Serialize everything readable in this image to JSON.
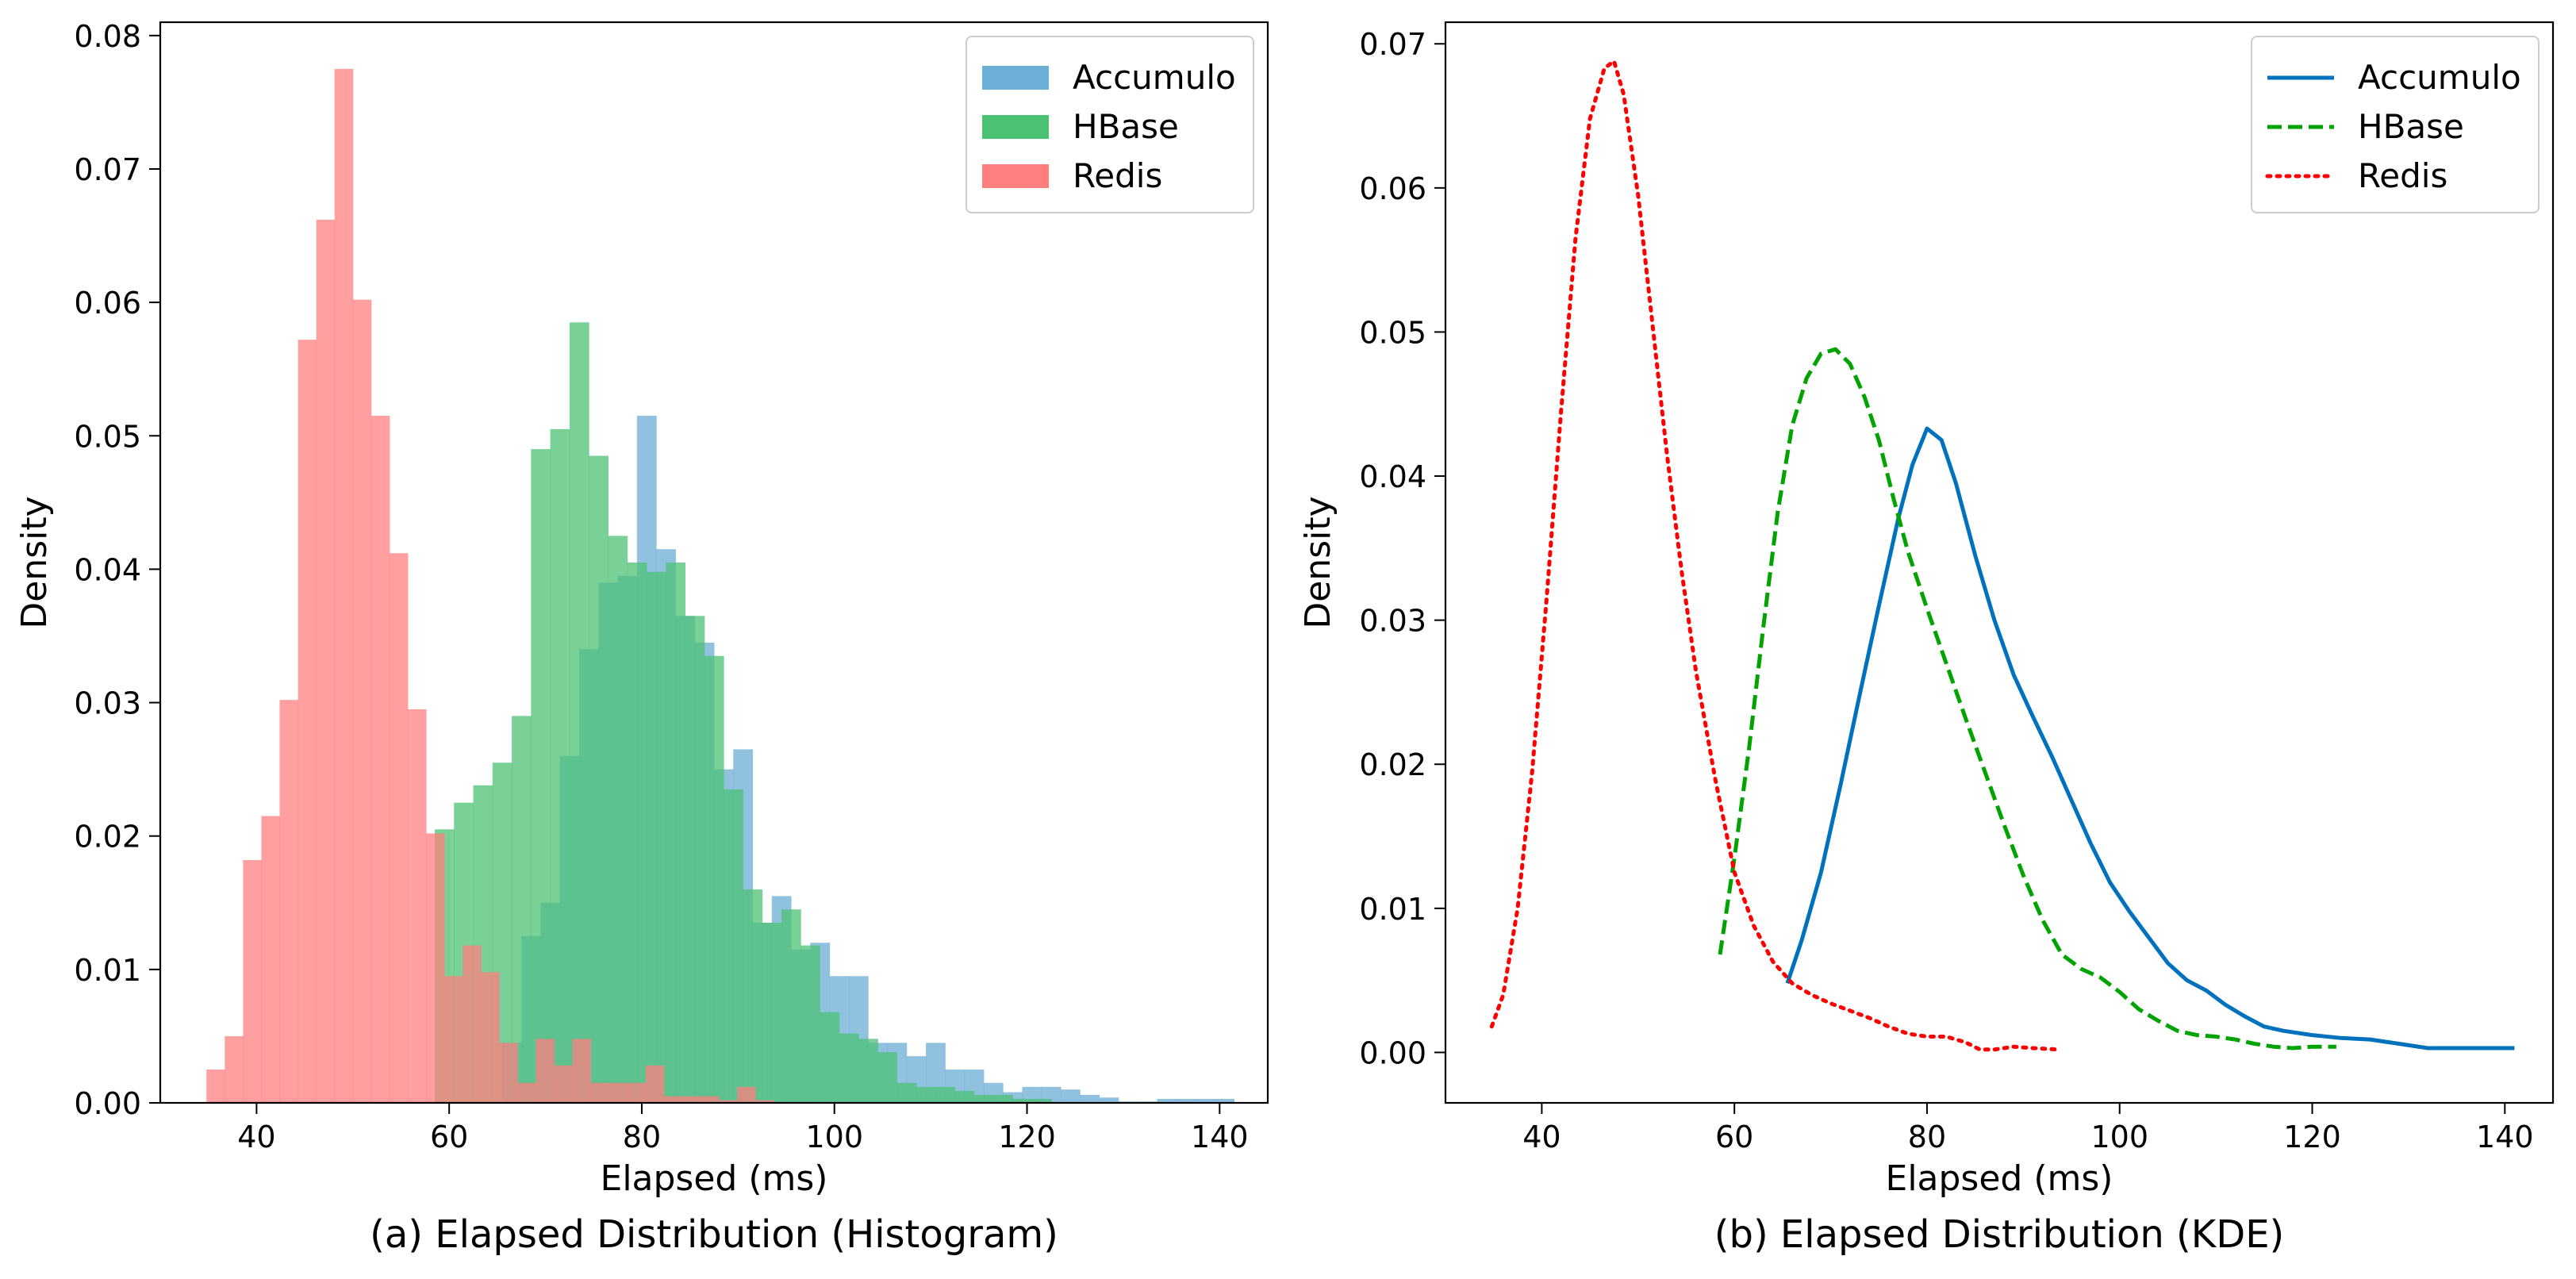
{
  "colors": {
    "accumulo": "#0072BD",
    "hbase": "#00A300",
    "redis": "#FF0000",
    "accumulo_fill": "#6BAED6",
    "hbase_fill": "#4CC274",
    "redis_fill": "#FF7F7F"
  },
  "chart_data": [
    {
      "type": "bar",
      "subtitle": "(a) Elapsed Distribution (Histogram)",
      "xlabel": "Elapsed (ms)",
      "ylabel": "Density",
      "xlim": [
        30,
        145
      ],
      "ylim": [
        0,
        0.081
      ],
      "xticks": [
        40,
        60,
        80,
        100,
        120,
        140
      ],
      "xtick_labels": [
        "40",
        "60",
        "80",
        "100",
        "120",
        "140"
      ],
      "yticks": [
        0,
        0.01,
        0.02,
        0.03,
        0.04,
        0.05,
        0.06,
        0.07,
        0.08
      ],
      "ytick_labels": [
        "0.00",
        "0.01",
        "0.02",
        "0.03",
        "0.04",
        "0.05",
        "0.06",
        "0.07",
        "0.08"
      ],
      "grid": false,
      "legend_position": "top-right",
      "legend": [
        "Accumulo",
        "HBase",
        "Redis"
      ],
      "series": [
        {
          "name": "Accumulo",
          "bin_edges": [
            65.5,
            67.5,
            69.5,
            71.5,
            73.5,
            75.5,
            77.5,
            79.5,
            81.5,
            83.5,
            85.5,
            87.5,
            89.5,
            91.5,
            93.5,
            95.5,
            97.5,
            99.5,
            101.5,
            103.5,
            105.5,
            107.5,
            109.5,
            111.5,
            113.5,
            115.5,
            117.5,
            119.5,
            121.5,
            123.5,
            125.5,
            127.5,
            129.5,
            131.5,
            133.5,
            135.5,
            137.5,
            139.5,
            141.5
          ],
          "values": [
            0.0045,
            0.0125,
            0.015,
            0.026,
            0.034,
            0.039,
            0.0395,
            0.0515,
            0.0415,
            0.0365,
            0.0345,
            0.025,
            0.0265,
            0.0135,
            0.0155,
            0.0115,
            0.012,
            0.0095,
            0.0095,
            0.0045,
            0.0045,
            0.0035,
            0.0045,
            0.0025,
            0.0025,
            0.0015,
            0.0008,
            0.0012,
            0.0012,
            0.001,
            0.0006,
            0.0004,
            0.0001,
            0.0001,
            0.0003,
            0.0003,
            0.0003,
            0.0003
          ]
        },
        {
          "name": "HBase",
          "bin_edges": [
            58.5,
            60.5,
            62.5,
            64.5,
            66.5,
            68.5,
            70.5,
            72.5,
            74.5,
            76.5,
            78.5,
            80.5,
            82.5,
            84.5,
            86.5,
            88.5,
            90.5,
            92.5,
            94.5,
            96.5,
            98.5,
            100.5,
            102.5,
            104.5,
            106.5,
            108.5,
            110.5,
            112.5,
            114.5,
            116.5,
            118.5,
            120.5,
            122.5
          ],
          "values": [
            0.0205,
            0.0225,
            0.0238,
            0.0255,
            0.029,
            0.049,
            0.0505,
            0.0585,
            0.0485,
            0.0425,
            0.0405,
            0.0398,
            0.0405,
            0.0365,
            0.0335,
            0.0235,
            0.016,
            0.0135,
            0.0145,
            0.0118,
            0.0068,
            0.0052,
            0.0048,
            0.0038,
            0.0015,
            0.0012,
            0.0012,
            0.0009,
            0.0006,
            0.0006,
            0.0003,
            0.0003
          ]
        },
        {
          "name": "Redis",
          "bin_edges": [
            34.8,
            36.7,
            38.6,
            40.5,
            42.4,
            44.3,
            46.2,
            48.1,
            50.0,
            51.9,
            53.8,
            55.7,
            57.6,
            59.5,
            61.4,
            63.3,
            65.2,
            67.1,
            69.0,
            70.9,
            72.8,
            74.7,
            76.6,
            78.5,
            80.4,
            82.3,
            84.2,
            86.1,
            88.0,
            89.9,
            91.8,
            93.7
          ],
          "values": [
            0.0025,
            0.005,
            0.0182,
            0.0215,
            0.0302,
            0.0572,
            0.0662,
            0.0775,
            0.0602,
            0.0515,
            0.0412,
            0.0295,
            0.0202,
            0.0095,
            0.0118,
            0.0098,
            0.0045,
            0.0015,
            0.0048,
            0.0028,
            0.0048,
            0.0015,
            0.0015,
            0.0015,
            0.0028,
            0.0005,
            0.0005,
            0.0005,
            0.0002,
            0.0012,
            0.0002
          ]
        }
      ]
    },
    {
      "type": "line",
      "subtitle": "(b) Elapsed Distribution (KDE)",
      "xlabel": "Elapsed (ms)",
      "ylabel": "Density",
      "xlim": [
        30,
        145
      ],
      "ylim": [
        -0.0035,
        0.0715
      ],
      "xticks": [
        40,
        60,
        80,
        100,
        120,
        140
      ],
      "xtick_labels": [
        "40",
        "60",
        "80",
        "100",
        "120",
        "140"
      ],
      "yticks": [
        0,
        0.01,
        0.02,
        0.03,
        0.04,
        0.05,
        0.06,
        0.07
      ],
      "ytick_labels": [
        "0.00",
        "0.01",
        "0.02",
        "0.03",
        "0.04",
        "0.05",
        "0.06",
        "0.07"
      ],
      "grid": false,
      "legend_position": "top-right",
      "legend": [
        "Accumulo",
        "HBase",
        "Redis"
      ],
      "series": [
        {
          "name": "Accumulo",
          "style": "solid",
          "points": [
            [
              65.5,
              0.0048
            ],
            [
              67,
              0.0078
            ],
            [
              69,
              0.0125
            ],
            [
              71,
              0.0185
            ],
            [
              73,
              0.0248
            ],
            [
              75,
              0.031
            ],
            [
              77,
              0.037
            ],
            [
              78.5,
              0.0408
            ],
            [
              80,
              0.0433
            ],
            [
              81.5,
              0.0425
            ],
            [
              83,
              0.0395
            ],
            [
              85,
              0.0345
            ],
            [
              87,
              0.03
            ],
            [
              89,
              0.0262
            ],
            [
              91,
              0.0233
            ],
            [
              93,
              0.0205
            ],
            [
              95,
              0.0175
            ],
            [
              97,
              0.0145
            ],
            [
              99,
              0.0118
            ],
            [
              101,
              0.0098
            ],
            [
              103,
              0.008
            ],
            [
              105,
              0.0062
            ],
            [
              107,
              0.005
            ],
            [
              109,
              0.0043
            ],
            [
              111,
              0.0033
            ],
            [
              113,
              0.0025
            ],
            [
              115,
              0.0018
            ],
            [
              117,
              0.0015
            ],
            [
              120,
              0.0012
            ],
            [
              123,
              0.001
            ],
            [
              126,
              0.0009
            ],
            [
              129,
              0.0006
            ],
            [
              132,
              0.0003
            ],
            [
              135,
              0.0003
            ],
            [
              138,
              0.0003
            ],
            [
              141,
              0.0003
            ]
          ]
        },
        {
          "name": "HBase",
          "style": "dashed",
          "points": [
            [
              58.5,
              0.0068
            ],
            [
              60,
              0.0135
            ],
            [
              61.5,
              0.021
            ],
            [
              63,
              0.0295
            ],
            [
              64.5,
              0.0375
            ],
            [
              66,
              0.0435
            ],
            [
              67.5,
              0.0468
            ],
            [
              69,
              0.0485
            ],
            [
              70.5,
              0.0488
            ],
            [
              72,
              0.0478
            ],
            [
              73.5,
              0.0455
            ],
            [
              75,
              0.0425
            ],
            [
              76.5,
              0.0385
            ],
            [
              78,
              0.0348
            ],
            [
              80,
              0.0308
            ],
            [
              82,
              0.027
            ],
            [
              84,
              0.0232
            ],
            [
              86,
              0.0195
            ],
            [
              88,
              0.0158
            ],
            [
              90,
              0.0123
            ],
            [
              92,
              0.0092
            ],
            [
              94,
              0.0068
            ],
            [
              96,
              0.0058
            ],
            [
              98,
              0.0052
            ],
            [
              100,
              0.0042
            ],
            [
              102,
              0.003
            ],
            [
              104,
              0.0022
            ],
            [
              106,
              0.0015
            ],
            [
              108,
              0.0012
            ],
            [
              110,
              0.0011
            ],
            [
              112,
              0.0009
            ],
            [
              114,
              0.0006
            ],
            [
              116,
              0.0004
            ],
            [
              118,
              0.0003
            ],
            [
              120,
              0.0004
            ],
            [
              122.5,
              0.0004
            ]
          ]
        },
        {
          "name": "Redis",
          "style": "dotted",
          "points": [
            [
              34.8,
              0.0018
            ],
            [
              36,
              0.004
            ],
            [
              37.5,
              0.01
            ],
            [
              39,
              0.0195
            ],
            [
              40.5,
              0.0315
            ],
            [
              42,
              0.0445
            ],
            [
              43.5,
              0.0565
            ],
            [
              45,
              0.0648
            ],
            [
              46.5,
              0.0683
            ],
            [
              47.5,
              0.0688
            ],
            [
              48.5,
              0.0665
            ],
            [
              50,
              0.0595
            ],
            [
              51.5,
              0.0505
            ],
            [
              53,
              0.0415
            ],
            [
              54.5,
              0.0335
            ],
            [
              56,
              0.0265
            ],
            [
              58,
              0.019
            ],
            [
              60,
              0.0125
            ],
            [
              62,
              0.0088
            ],
            [
              64,
              0.0063
            ],
            [
              66,
              0.0048
            ],
            [
              68,
              0.004
            ],
            [
              70,
              0.0034
            ],
            [
              72,
              0.0029
            ],
            [
              74,
              0.0024
            ],
            [
              76,
              0.0018
            ],
            [
              78,
              0.0013
            ],
            [
              80,
              0.0011
            ],
            [
              82,
              0.0011
            ],
            [
              84,
              0.0007
            ],
            [
              85.5,
              0.0002
            ],
            [
              87,
              0.0002
            ],
            [
              89,
              0.0004
            ],
            [
              91,
              0.0003
            ],
            [
              93.7,
              0.0002
            ]
          ]
        }
      ]
    }
  ]
}
